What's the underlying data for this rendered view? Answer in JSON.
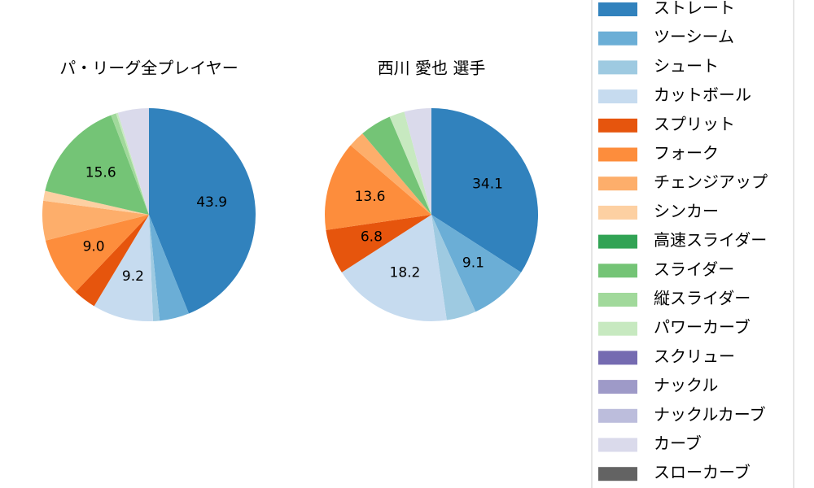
{
  "chart_data": [
    {
      "type": "pie",
      "title": "パ・リーグ全プレイヤー",
      "values": [
        43.9,
        4.5,
        1.0,
        9.2,
        3.5,
        9.0,
        6.0,
        1.5,
        0,
        15.6,
        0.8,
        0.3,
        0,
        0,
        0,
        4.7,
        0
      ],
      "value_labels": [
        "43.9",
        null,
        null,
        "9.2",
        null,
        "9.0",
        null,
        null,
        null,
        "15.6",
        null,
        null,
        null,
        null,
        null,
        null,
        null
      ]
    },
    {
      "type": "pie",
      "title": "西川 愛也  選手",
      "values": [
        34.1,
        9.1,
        4.5,
        18.2,
        6.8,
        13.6,
        2.5,
        0,
        0,
        4.8,
        0,
        2.3,
        0,
        0,
        0,
        4.1,
        0
      ],
      "value_labels": [
        "34.1",
        "9.1",
        null,
        "18.2",
        "6.8",
        "13.6",
        null,
        null,
        null,
        null,
        null,
        null,
        null,
        null,
        null,
        null,
        null
      ]
    }
  ],
  "legend": {
    "labels": [
      "ストレート",
      "ツーシーム",
      "シュート",
      "カットボール",
      "スプリット",
      "フォーク",
      "チェンジアップ",
      "シンカー",
      "高速スライダー",
      "スライダー",
      "縦スライダー",
      "パワーカーブ",
      "スクリュー",
      "ナックル",
      "ナックルカーブ",
      "カーブ",
      "スローカーブ"
    ],
    "colors": [
      "#3182bd",
      "#6baed6",
      "#9ecae1",
      "#c6dbef",
      "#e6550d",
      "#fd8d3c",
      "#fdae6b",
      "#fdd0a2",
      "#31a354",
      "#74c476",
      "#a1d99b",
      "#c7e9c0",
      "#756bb1",
      "#9e9ac8",
      "#bcbddc",
      "#dadaeb",
      "#636363"
    ]
  }
}
